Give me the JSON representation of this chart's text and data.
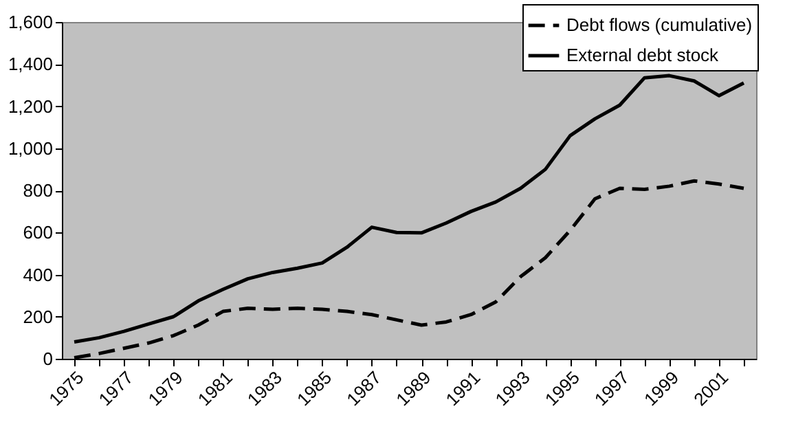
{
  "chart_data": {
    "type": "line",
    "categories": [
      "1975",
      null,
      "1977",
      null,
      "1979",
      null,
      "1981",
      null,
      "1983",
      null,
      "1985",
      null,
      "1987",
      null,
      "1989",
      null,
      "1991",
      null,
      "1993",
      null,
      "1995",
      null,
      "1997",
      null,
      "1999",
      null,
      "2001",
      null
    ],
    "series": [
      {
        "name": "Debt flows (cumulative)",
        "color": "#000000",
        "line_style": "dashed",
        "values": [
          5,
          25,
          50,
          75,
          110,
          160,
          225,
          240,
          235,
          240,
          235,
          225,
          210,
          185,
          160,
          175,
          210,
          270,
          390,
          480,
          610,
          760,
          810,
          805,
          820,
          845,
          830,
          810
        ]
      },
      {
        "name": "External debt stock",
        "color": "#000000",
        "line_style": "solid",
        "values": [
          80,
          100,
          130,
          165,
          200,
          275,
          330,
          380,
          410,
          430,
          455,
          530,
          625,
          600,
          598,
          645,
          700,
          745,
          810,
          900,
          1060,
          1140,
          1205,
          1335,
          1345,
          1320,
          1250,
          1310
        ]
      }
    ],
    "ylim": [
      0,
      1600
    ],
    "yticks": [
      0,
      200,
      400,
      600,
      800,
      {
        "value": 1000,
        "label": "1,000"
      },
      {
        "value": 1200,
        "label": "1,200"
      },
      {
        "value": 1400,
        "label": "1,400"
      },
      {
        "value": 1600,
        "label": "1,600"
      }
    ],
    "grid": false,
    "legend": "top right",
    "marker": "none"
  }
}
